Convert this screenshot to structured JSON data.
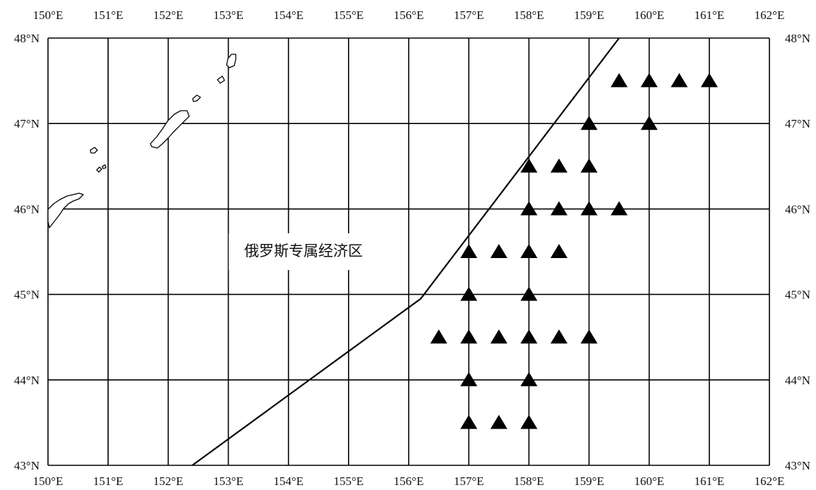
{
  "map": {
    "longitudes": [
      150,
      151,
      152,
      153,
      154,
      155,
      156,
      157,
      158,
      159,
      160,
      161,
      162
    ],
    "latitudes": [
      43,
      44,
      45,
      46,
      47,
      48
    ],
    "lon_labels": [
      "150°E",
      "151°E",
      "152°E",
      "153°E",
      "154°E",
      "155°E",
      "156°E",
      "157°E",
      "158°E",
      "159°E",
      "160°E",
      "161°E",
      "162°E"
    ],
    "lat_labels": [
      "43°N",
      "44°N",
      "45°N",
      "46°N",
      "47°N",
      "48°N"
    ],
    "region_label": "俄罗斯专属经济区",
    "eez_boundary": [
      {
        "lon": 152.4,
        "lat": 43.0
      },
      {
        "lon": 156.2,
        "lat": 44.95
      },
      {
        "lon": 159.5,
        "lat": 48.0
      }
    ],
    "stations": [
      {
        "lon": 159.5,
        "lat": 47.5
      },
      {
        "lon": 160.0,
        "lat": 47.5
      },
      {
        "lon": 160.5,
        "lat": 47.5
      },
      {
        "lon": 161.0,
        "lat": 47.5
      },
      {
        "lon": 159.0,
        "lat": 47.0
      },
      {
        "lon": 160.0,
        "lat": 47.0
      },
      {
        "lon": 158.0,
        "lat": 46.5
      },
      {
        "lon": 158.5,
        "lat": 46.5
      },
      {
        "lon": 159.0,
        "lat": 46.5
      },
      {
        "lon": 158.0,
        "lat": 46.0
      },
      {
        "lon": 158.5,
        "lat": 46.0
      },
      {
        "lon": 159.0,
        "lat": 46.0
      },
      {
        "lon": 159.5,
        "lat": 46.0
      },
      {
        "lon": 157.0,
        "lat": 45.5
      },
      {
        "lon": 157.5,
        "lat": 45.5
      },
      {
        "lon": 158.0,
        "lat": 45.5
      },
      {
        "lon": 158.5,
        "lat": 45.5
      },
      {
        "lon": 157.0,
        "lat": 45.0
      },
      {
        "lon": 158.0,
        "lat": 45.0
      },
      {
        "lon": 156.5,
        "lat": 44.5
      },
      {
        "lon": 157.0,
        "lat": 44.5
      },
      {
        "lon": 157.5,
        "lat": 44.5
      },
      {
        "lon": 158.0,
        "lat": 44.5
      },
      {
        "lon": 158.5,
        "lat": 44.5
      },
      {
        "lon": 159.0,
        "lat": 44.5
      },
      {
        "lon": 157.0,
        "lat": 44.0
      },
      {
        "lon": 158.0,
        "lat": 44.0
      },
      {
        "lon": 157.0,
        "lat": 43.5
      },
      {
        "lon": 157.5,
        "lat": 43.5
      },
      {
        "lon": 158.0,
        "lat": 43.5
      }
    ],
    "station_marker": "filled-triangle",
    "colors": {
      "line": "#000000",
      "marker": "#000000",
      "background": "#ffffff"
    }
  }
}
